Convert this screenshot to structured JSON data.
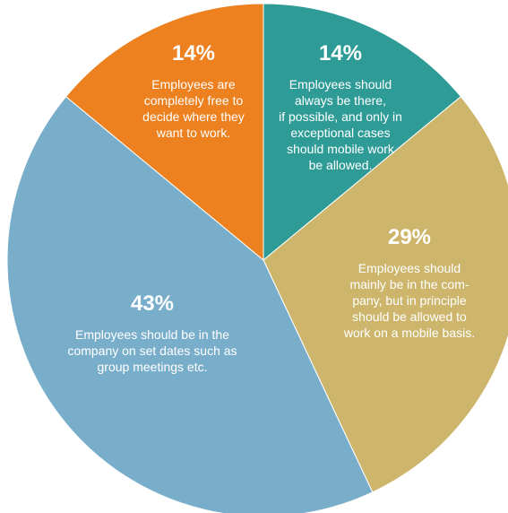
{
  "chart_data": {
    "type": "pie",
    "title": "",
    "slices": [
      {
        "value": 14,
        "label": "14%",
        "description": [
          "Employees should",
          "always be there,",
          "if possible, and only in",
          "exceptional cases",
          "should mobile work",
          "be allowed."
        ],
        "color": "#2e9b96"
      },
      {
        "value": 29,
        "label": "29%",
        "description": [
          "Employees should",
          "mainly be in the com-",
          "pany, but in principle",
          "should be allowed to",
          "work on a mobile basis."
        ],
        "color": "#cdb66c"
      },
      {
        "value": 43,
        "label": "43%",
        "description": [
          "Employees should be in the",
          "company on set dates such as",
          "group meetings etc."
        ],
        "color": "#79aecb"
      },
      {
        "value": 14,
        "label": "14%",
        "description": [
          "Employees are",
          "completely free to",
          "decide where they",
          "want to work."
        ],
        "color": "#ed801f"
      }
    ]
  }
}
